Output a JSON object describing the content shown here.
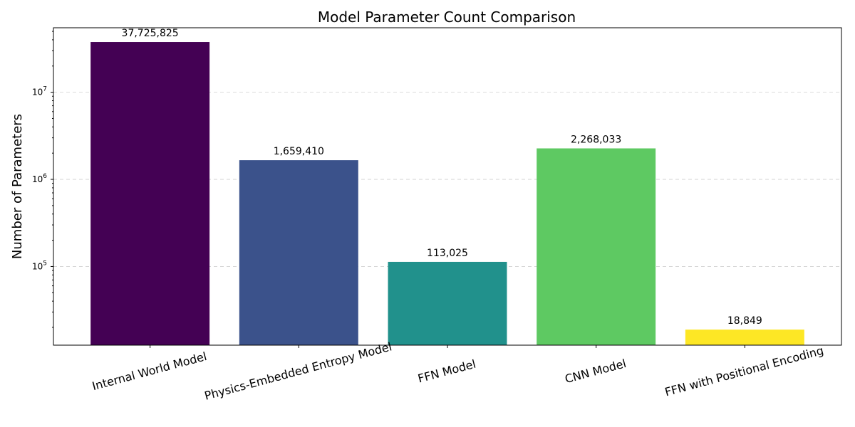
{
  "chart_data": {
    "type": "bar",
    "title": "Model Parameter Count Comparison",
    "xlabel": "",
    "ylabel": "Number of Parameters",
    "yscale": "log",
    "ylim": [
      12500,
      55000000
    ],
    "grid": "y-dashed",
    "categories": [
      "Internal World Model",
      "Physics-Embedded Entropy Model",
      "FFN Model",
      "CNN Model",
      "FFN with Positional Encoding"
    ],
    "values": [
      37725825,
      1659410,
      113025,
      2268033,
      18849
    ],
    "value_labels": [
      "37,725,825",
      "1,659,410",
      "113,025",
      "2,268,033",
      "18,849"
    ],
    "colors": [
      "#440154",
      "#3b528b",
      "#21918c",
      "#5ec962",
      "#fde725"
    ],
    "y_ticks": [
      {
        "base": "10",
        "exp": "5",
        "value": 100000
      },
      {
        "base": "10",
        "exp": "6",
        "value": 1000000
      },
      {
        "base": "10",
        "exp": "7",
        "value": 10000000
      }
    ]
  }
}
